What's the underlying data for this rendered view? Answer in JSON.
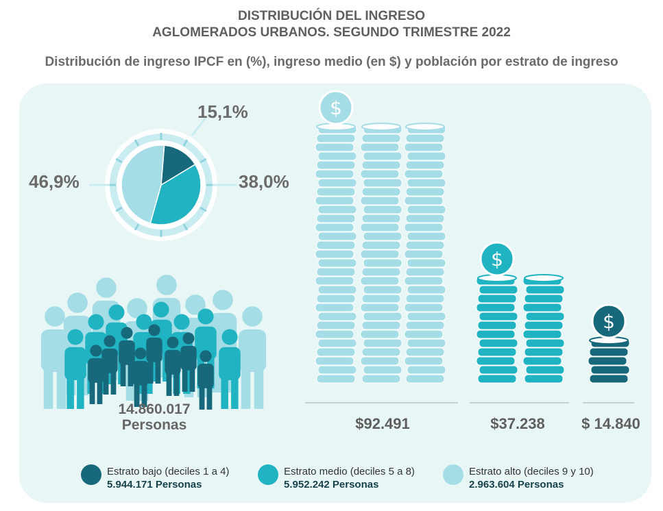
{
  "title_line1": "DISTRIBUCIÓN DEL INGRESO",
  "title_line2": "AGLOMERADOS URBANOS. SEGUNDO TRIMESTRE 2022",
  "subtitle": "Distribución de ingreso IPCF en (%), ingreso medio (en $) y población por estrato de ingreso",
  "colors": {
    "bajo": "#17687a",
    "medio": "#20b3c1",
    "alto": "#a5dde6",
    "background_panel": "#e9f6f6"
  },
  "chart_data": [
    {
      "type": "pie",
      "labels": [
        "Estrato bajo (deciles 1 a 4)",
        "Estrato medio (deciles 5 a 8)",
        "Estrato alto (deciles 9 y 10)"
      ],
      "values": [
        15.1,
        38.0,
        46.9
      ],
      "value_labels": [
        "15,1%",
        "38,0%",
        "46,9%"
      ]
    },
    {
      "type": "bar",
      "categories": [
        "Estrato alto (deciles 9 y 10)",
        "Estrato medio (deciles 5 a 8)",
        "Estrato bajo (deciles 1 a 4)"
      ],
      "values": [
        92491,
        37238,
        14840
      ],
      "value_labels": [
        "$92.491",
        "$37.238",
        "$ 14.840"
      ]
    }
  ],
  "population_total": "14.860.017",
  "population_unit": "Personas",
  "legend": [
    {
      "label": "Estrato bajo (deciles 1 a 4)",
      "count": "5.944.171 Personas",
      "color": "#17687a"
    },
    {
      "label": "Estrato medio (deciles 5 a 8)",
      "count": "5.952.242 Personas",
      "color": "#20b3c1"
    },
    {
      "label": "Estrato alto (deciles 9 y 10)",
      "count": "2.963.604 Personas",
      "color": "#a5dde6"
    }
  ]
}
